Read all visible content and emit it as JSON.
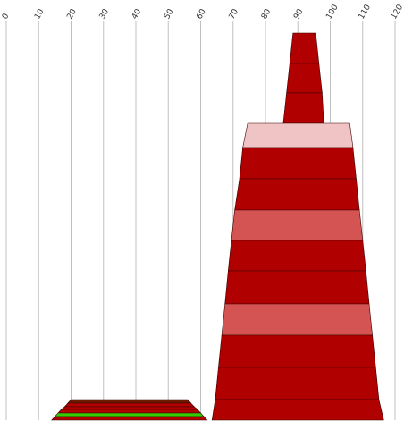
{
  "chart_data": {
    "type": "area",
    "x_ticks": [
      0,
      10,
      20,
      30,
      40,
      50,
      60,
      70,
      80,
      90,
      100,
      110,
      120
    ],
    "xlim": [
      0,
      120
    ],
    "grid": "vertical",
    "legend": "none",
    "tick_label_rotation": -60,
    "colors": {
      "dark_red": "#b00000",
      "medium_red": "#d45454",
      "light_pink": "#f0c4c4",
      "dark_green": "#6a1b00",
      "bright_green": "#33cc00",
      "gridline": "#c0c0c0"
    },
    "shapes": [
      {
        "name": "tall stacked shape",
        "bands_top_to_bottom": [
          {
            "from": [
              88.5,
              95.5
            ],
            "to": [
              87.5,
              96.5
            ],
            "color": "dark_red"
          },
          {
            "from": [
              87.5,
              96.5
            ],
            "to": [
              86.5,
              97.5
            ],
            "color": "dark_red"
          },
          {
            "from": [
              86.5,
              97.5
            ],
            "to": [
              85.5,
              98.0
            ],
            "color": "dark_red"
          },
          {
            "from": [
              74.5,
              106.0
            ],
            "to": [
              73.0,
              107.0
            ],
            "color": "light_pink"
          },
          {
            "from": [
              73.0,
              107.0
            ],
            "to": [
              72.0,
              108.0
            ],
            "color": "dark_red"
          },
          {
            "from": [
              72.0,
              108.0
            ],
            "to": [
              70.5,
              109.0
            ],
            "color": "dark_red"
          },
          {
            "from": [
              70.5,
              109.0
            ],
            "to": [
              69.5,
              110.0
            ],
            "color": "medium_red"
          },
          {
            "from": [
              69.5,
              110.0
            ],
            "to": [
              68.5,
              111.0
            ],
            "color": "dark_red"
          },
          {
            "from": [
              68.5,
              111.0
            ],
            "to": [
              67.5,
              112.0
            ],
            "color": "dark_red"
          },
          {
            "from": [
              67.5,
              112.0
            ],
            "to": [
              66.5,
              113.0
            ],
            "color": "medium_red"
          },
          {
            "from": [
              66.5,
              113.0
            ],
            "to": [
              65.5,
              114.0
            ],
            "color": "dark_red"
          },
          {
            "from": [
              65.5,
              114.0
            ],
            "to": [
              64.5,
              115.0
            ],
            "color": "dark_red"
          },
          {
            "from": [
              64.5,
              115.0
            ],
            "to": [
              63.5,
              116.5
            ],
            "color": "dark_red"
          }
        ]
      },
      {
        "name": "low stacked shape",
        "bands_top_to_bottom": [
          {
            "from": [
              20.0,
              56.0
            ],
            "to": [
              19.0,
              57.0
            ],
            "color": "dark_green"
          },
          {
            "from": [
              19.0,
              57.0
            ],
            "to": [
              18.0,
              58.0
            ],
            "color": "dark_red"
          },
          {
            "from": [
              18.0,
              58.0
            ],
            "to": [
              17.0,
              59.0
            ],
            "color": "dark_red"
          },
          {
            "from": [
              17.0,
              59.0
            ],
            "to": [
              16.0,
              60.0
            ],
            "color": "dark_red"
          },
          {
            "from": [
              16.0,
              60.0
            ],
            "to": [
              15.0,
              61.0
            ],
            "color": "bright_green"
          },
          {
            "from": [
              15.0,
              61.0
            ],
            "to": [
              14.0,
              62.0
            ],
            "color": "dark_red"
          }
        ]
      }
    ]
  }
}
